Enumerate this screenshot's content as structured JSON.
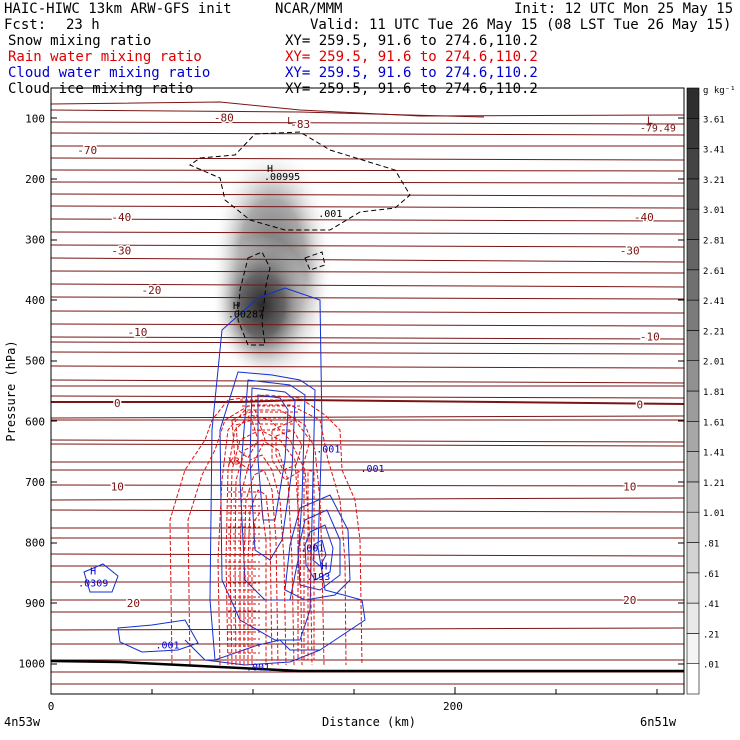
{
  "header": {
    "title": "HAIC-HIWC 13km ARW-GFS init",
    "center": "NCAR/MMM",
    "init": "Init: 12 UTC Mon 25 May 15",
    "fcst_label": "Fcst:",
    "fcst_value": "23 h",
    "valid": "Valid: 11 UTC Tue 26 May 15 (08 LST Tue 26 May 15)",
    "fields": [
      {
        "name": "Snow mixing ratio",
        "xy": "XY= 259.5, 91.6 to 274.6,110.2",
        "color": "#000000"
      },
      {
        "name": "Rain water mixing ratio",
        "xy": "XY= 259.5, 91.6 to 274.6,110.2",
        "color": "#dd0000"
      },
      {
        "name": "Cloud water mixing ratio",
        "xy": "XY= 259.5, 91.6 to 274.6,110.2",
        "color": "#0000cc"
      },
      {
        "name": "Cloud ice mixing ratio",
        "xy": "XY= 259.5, 91.6 to 274.6,110.2",
        "color": "#000000"
      }
    ]
  },
  "chart_data": {
    "type": "heatmap",
    "title": "HAIC-HIWC 13km ARW-GFS init",
    "xlabel": "Distance (km)",
    "ylabel": "Pressure (hPa)",
    "xlim": [
      0,
      315
    ],
    "ylim": [
      50,
      1050
    ],
    "x_ticks": [
      {
        "value": 0,
        "label": "0"
      },
      {
        "value": 200,
        "label": "200"
      }
    ],
    "y_ticks": [
      {
        "value": 100,
        "label": "100"
      },
      {
        "value": 200,
        "label": "200"
      },
      {
        "value": 300,
        "label": "300"
      },
      {
        "value": 400,
        "label": "400"
      },
      {
        "value": 500,
        "label": "500"
      },
      {
        "value": 600,
        "label": "600"
      },
      {
        "value": 700,
        "label": "700"
      },
      {
        "value": 800,
        "label": "800"
      },
      {
        "value": 900,
        "label": "900"
      },
      {
        "value": 1000,
        "label": "1000"
      }
    ],
    "x_endpoints": {
      "left": "4n53w",
      "right": "6n51w"
    },
    "colorbar": {
      "units": "g kg⁻¹",
      "labels": [
        ".01",
        ".21",
        ".41",
        ".61",
        ".81",
        "1.01",
        "1.21",
        "1.41",
        "1.61",
        "1.81",
        "2.01",
        "2.21",
        "2.41",
        "2.61",
        "2.81",
        "3.01",
        "3.21",
        "3.41",
        "3.61"
      ],
      "colors": [
        "#ffffff",
        "#f4f4f4",
        "#e9e9e9",
        "#dedede",
        "#d3d3d3",
        "#c8c8c8",
        "#bdbdbd",
        "#b2b2b2",
        "#a7a7a7",
        "#9c9c9c",
        "#919191",
        "#868686",
        "#7b7b7b",
        "#707070",
        "#656565",
        "#5a5a5a",
        "#4f4f4f",
        "#444444",
        "#393939",
        "#2e2e2e"
      ]
    },
    "temperature_labels": [
      {
        "x": 86,
        "p": 99,
        "label": "-80"
      },
      {
        "x": 124,
        "p": 109,
        "label": "-83"
      },
      {
        "x": 18,
        "p": 152,
        "label": "-70"
      },
      {
        "x": 35,
        "p": 263,
        "label": "-40"
      },
      {
        "x": 295,
        "p": 263,
        "label": "-40"
      },
      {
        "x": 35,
        "p": 318,
        "label": "-30"
      },
      {
        "x": 288,
        "p": 318,
        "label": "-30"
      },
      {
        "x": 50,
        "p": 383,
        "label": "-20"
      },
      {
        "x": 43,
        "p": 453,
        "label": "-10"
      },
      {
        "x": 298,
        "p": 460,
        "label": "-10"
      },
      {
        "x": 33,
        "p": 570,
        "label": "0"
      },
      {
        "x": 293,
        "p": 572,
        "label": "0"
      },
      {
        "x": 33,
        "p": 708,
        "label": "10"
      },
      {
        "x": 288,
        "p": 708,
        "label": "10"
      },
      {
        "x": 41,
        "p": 900,
        "label": "20"
      },
      {
        "x": 288,
        "p": 895,
        "label": "20"
      }
    ],
    "extrema_labels": [
      {
        "x": 119,
        "p": 103,
        "label": "L",
        "color": "#7a1010"
      },
      {
        "x": 298,
        "p": 102,
        "label": "L",
        "color": "#7a1010"
      },
      {
        "x": 302,
        "p": 115,
        "label": "-79.49",
        "color": "#7a1010"
      },
      {
        "x": 109,
        "p": 182,
        "label": "H",
        "color": "#000000"
      },
      {
        "x": 115,
        "p": 195,
        "label": ".00995",
        "color": "#000000"
      },
      {
        "x": 139,
        "p": 256,
        "label": ".001",
        "color": "#000000"
      },
      {
        "x": 92,
        "p": 408,
        "label": "H",
        "color": "#000000"
      },
      {
        "x": 97,
        "p": 422,
        "label": ".00287",
        "color": "#000000"
      },
      {
        "x": 138,
        "p": 645,
        "label": ".001",
        "color": "#0000cc"
      },
      {
        "x": 160,
        "p": 677,
        "label": ".001",
        "color": "#0000cc"
      },
      {
        "x": 21,
        "p": 846,
        "label": "H",
        "color": "#0000cc"
      },
      {
        "x": 21,
        "p": 866,
        "label": ".0309",
        "color": "#0000cc"
      },
      {
        "x": 58,
        "p": 968,
        "label": ".001",
        "color": "#0000cc"
      },
      {
        "x": 103,
        "p": 1005,
        "label": ".001",
        "color": "#0000cc"
      },
      {
        "x": 130,
        "p": 808,
        "label": ".001",
        "color": "#0000cc"
      },
      {
        "x": 136,
        "p": 838,
        "label": "H",
        "color": "#0000cc"
      },
      {
        "x": 133,
        "p": 855,
        "label": ".193",
        "color": "#0000cc"
      },
      {
        "x": 91,
        "p": 665,
        "label": "X3",
        "color": "#dd0000"
      }
    ]
  }
}
